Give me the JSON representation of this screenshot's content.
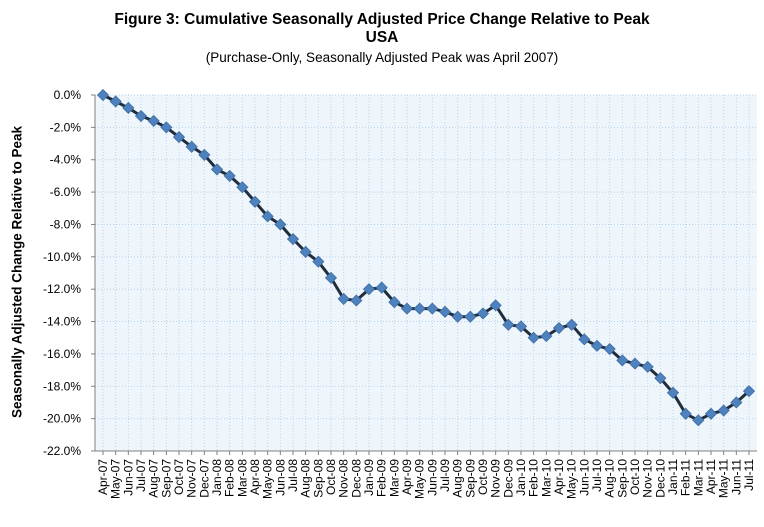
{
  "chart_data": {
    "type": "line",
    "title": "Figure 3: Cumulative Seasonally Adjusted Price Change Relative to Peak",
    "title_line2": "USA",
    "subtitle": "(Purchase-Only, Seasonally Adjusted Peak was April 2007)",
    "xlabel": "",
    "ylabel": "Seasonally Adjusted Change Relative to Peak",
    "ylim": [
      -22.0,
      0.0
    ],
    "ytick_step": 2.0,
    "ytick_format": "percent_1dp",
    "grid": true,
    "legend": "none",
    "colors": {
      "line": "#1f2d3d",
      "marker": "#4f81bd",
      "plot_bg": "#eef5fb",
      "grid": "#b8d4ec",
      "axis": "#808080"
    },
    "x": [
      "Apr-07",
      "May-07",
      "Jun-07",
      "Jul-07",
      "Aug-07",
      "Sep-07",
      "Oct-07",
      "Nov-07",
      "Dec-07",
      "Jan-08",
      "Feb-08",
      "Mar-08",
      "Apr-08",
      "May-08",
      "Jun-08",
      "Jul-08",
      "Aug-08",
      "Sep-08",
      "Oct-08",
      "Nov-08",
      "Dec-08",
      "Jan-09",
      "Feb-09",
      "Mar-09",
      "Apr-09",
      "May-09",
      "Jun-09",
      "Jul-09",
      "Aug-09",
      "Sep-09",
      "Oct-09",
      "Nov-09",
      "Dec-09",
      "Jan-10",
      "Feb-10",
      "Mar-10",
      "Apr-10",
      "May-10",
      "Jun-10",
      "Jul-10",
      "Aug-10",
      "Sep-10",
      "Oct-10",
      "Nov-10",
      "Dec-10",
      "Jan-11",
      "Feb-11",
      "Mar-11",
      "Apr-11",
      "May-11",
      "Jun-11",
      "Jul-11"
    ],
    "series": [
      {
        "values": [
          0.0,
          -0.4,
          -0.8,
          -1.3,
          -1.6,
          -2.0,
          -2.6,
          -3.2,
          -3.7,
          -4.6,
          -5.0,
          -5.7,
          -6.6,
          -7.5,
          -8.0,
          -8.9,
          -9.7,
          -10.3,
          -11.3,
          -12.6,
          -12.7,
          -12.0,
          -11.9,
          -12.8,
          -13.2,
          -13.2,
          -13.2,
          -13.4,
          -13.7,
          -13.7,
          -13.5,
          -13.0,
          -14.2,
          -14.3,
          -15.0,
          -14.9,
          -14.4,
          -14.2,
          -15.1,
          -15.5,
          -15.7,
          -16.4,
          -16.6,
          -16.8,
          -17.5,
          -18.4,
          -19.7,
          -20.1,
          -19.7,
          -19.5,
          -19.0,
          -18.3
        ]
      }
    ]
  }
}
